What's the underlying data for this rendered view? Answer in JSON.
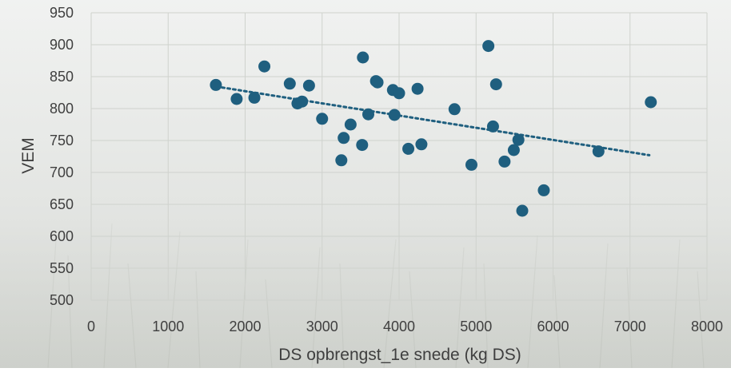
{
  "chart_data": {
    "type": "scatter",
    "xlabel": "DS opbrengst_1e snede (kg DS)",
    "ylabel": "VEM",
    "xlim": [
      0,
      8000
    ],
    "ylim": [
      500,
      950
    ],
    "xticks": [
      0,
      1000,
      2000,
      3000,
      4000,
      5000,
      6000,
      7000,
      8000
    ],
    "yticks": [
      500,
      550,
      600,
      650,
      700,
      750,
      800,
      850,
      900,
      950
    ],
    "grid": true,
    "marker_color": "#1f5f7f",
    "trendline": {
      "type": "linear",
      "style": "dotted",
      "x": [
        1700,
        7250
      ],
      "y": [
        833,
        727
      ]
    },
    "points": [
      {
        "x": 1620,
        "y": 837
      },
      {
        "x": 1890,
        "y": 815
      },
      {
        "x": 2120,
        "y": 817
      },
      {
        "x": 2250,
        "y": 866
      },
      {
        "x": 2580,
        "y": 839
      },
      {
        "x": 2680,
        "y": 808
      },
      {
        "x": 2740,
        "y": 811
      },
      {
        "x": 2830,
        "y": 836
      },
      {
        "x": 3000,
        "y": 784
      },
      {
        "x": 3250,
        "y": 719
      },
      {
        "x": 3280,
        "y": 754
      },
      {
        "x": 3370,
        "y": 775
      },
      {
        "x": 3520,
        "y": 743
      },
      {
        "x": 3530,
        "y": 880
      },
      {
        "x": 3600,
        "y": 791
      },
      {
        "x": 3700,
        "y": 843
      },
      {
        "x": 3720,
        "y": 841
      },
      {
        "x": 3920,
        "y": 829
      },
      {
        "x": 3940,
        "y": 790
      },
      {
        "x": 4000,
        "y": 824
      },
      {
        "x": 4120,
        "y": 737
      },
      {
        "x": 4240,
        "y": 831
      },
      {
        "x": 4290,
        "y": 744
      },
      {
        "x": 4720,
        "y": 799
      },
      {
        "x": 4940,
        "y": 712
      },
      {
        "x": 5160,
        "y": 898
      },
      {
        "x": 5220,
        "y": 772
      },
      {
        "x": 5260,
        "y": 838
      },
      {
        "x": 5370,
        "y": 717
      },
      {
        "x": 5490,
        "y": 735
      },
      {
        "x": 5550,
        "y": 751
      },
      {
        "x": 5600,
        "y": 640
      },
      {
        "x": 5880,
        "y": 672
      },
      {
        "x": 6590,
        "y": 733
      },
      {
        "x": 7270,
        "y": 810
      }
    ]
  }
}
